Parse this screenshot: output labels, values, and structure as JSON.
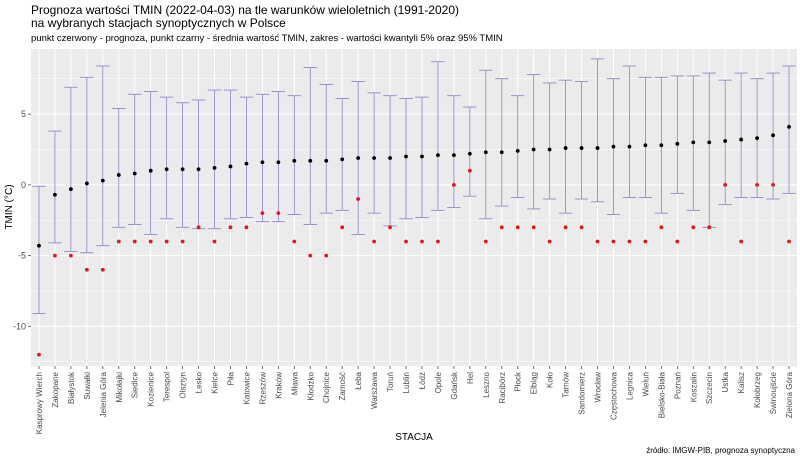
{
  "chart_data": {
    "type": "scatter",
    "title": "Prognoza wartości TMIN (2022-04-03) na tle warunków wieloletnich (1991-2020)",
    "title_line2": "na wybranych stacjach synoptycznych w Polsce",
    "subtitle": "punkt czerwony - prognoza, punkt czarny - średnia wartość TMIN, zakres - wartości kwantyli 5% oraz 95% TMIN",
    "xlabel": "STACJA",
    "ylabel": "TMIN (°C)",
    "caption": "źródło: IMGW-PIB, prognoza synoptyczna",
    "ylim": [
      -12.8,
      9.6
    ],
    "yticks": [
      -10,
      -5,
      0,
      5
    ],
    "grid": true,
    "colors": {
      "mean": "#000000",
      "forecast": "#e8141c",
      "range": "#8080c8",
      "panel": "#ebebeb",
      "grid": "#ffffff"
    },
    "stations": [
      {
        "name": "Kasprowy Wierch",
        "mean": -4.3,
        "forecast": -12.0,
        "q05": -9.1,
        "q95": -0.1
      },
      {
        "name": "Zakopane",
        "mean": -0.7,
        "forecast": -5.0,
        "q05": -4.1,
        "q95": 3.8
      },
      {
        "name": "Białystok",
        "mean": -0.3,
        "forecast": -5.0,
        "q05": -4.7,
        "q95": 6.9
      },
      {
        "name": "Suwałki",
        "mean": 0.1,
        "forecast": -6.0,
        "q05": -4.8,
        "q95": 7.6
      },
      {
        "name": "Jelenia Góra",
        "mean": 0.3,
        "forecast": -6.0,
        "q05": -4.3,
        "q95": 8.4
      },
      {
        "name": "Mikołajki",
        "mean": 0.7,
        "forecast": -4.0,
        "q05": -3.0,
        "q95": 5.4
      },
      {
        "name": "Siedlce",
        "mean": 0.8,
        "forecast": -4.0,
        "q05": -2.8,
        "q95": 6.4
      },
      {
        "name": "Kozienice",
        "mean": 1.0,
        "forecast": -4.0,
        "q05": -3.5,
        "q95": 6.6
      },
      {
        "name": "Terespol",
        "mean": 1.1,
        "forecast": -4.0,
        "q05": -2.4,
        "q95": 6.2
      },
      {
        "name": "Olsztyn",
        "mean": 1.1,
        "forecast": -4.0,
        "q05": -3.0,
        "q95": 5.8
      },
      {
        "name": "Lesko",
        "mean": 1.1,
        "forecast": -3.0,
        "q05": -3.1,
        "q95": 6.0
      },
      {
        "name": "Kielce",
        "mean": 1.2,
        "forecast": -4.0,
        "q05": -3.1,
        "q95": 6.7
      },
      {
        "name": "Piła",
        "mean": 1.3,
        "forecast": -3.0,
        "q05": -2.4,
        "q95": 6.7
      },
      {
        "name": "Katowice",
        "mean": 1.5,
        "forecast": -3.0,
        "q05": -2.3,
        "q95": 6.2
      },
      {
        "name": "Rzeszów",
        "mean": 1.6,
        "forecast": -2.0,
        "q05": -2.6,
        "q95": 6.4
      },
      {
        "name": "Kraków",
        "mean": 1.6,
        "forecast": -2.0,
        "q05": -2.6,
        "q95": 6.6
      },
      {
        "name": "Mława",
        "mean": 1.7,
        "forecast": -4.0,
        "q05": -2.1,
        "q95": 6.3
      },
      {
        "name": "Kłodzko",
        "mean": 1.7,
        "forecast": -5.0,
        "q05": -2.8,
        "q95": 8.3
      },
      {
        "name": "Chojnice",
        "mean": 1.7,
        "forecast": -5.0,
        "q05": -2.0,
        "q95": 7.1
      },
      {
        "name": "Zamość",
        "mean": 1.8,
        "forecast": -3.0,
        "q05": -1.8,
        "q95": 6.1
      },
      {
        "name": "Łeba",
        "mean": 1.9,
        "forecast": -1.0,
        "q05": -3.5,
        "q95": 7.3
      },
      {
        "name": "Warszawa",
        "mean": 1.9,
        "forecast": -4.0,
        "q05": -2.0,
        "q95": 6.5
      },
      {
        "name": "Toruń",
        "mean": 1.9,
        "forecast": -3.0,
        "q05": -2.9,
        "q95": 6.3
      },
      {
        "name": "Lublin",
        "mean": 2.0,
        "forecast": -4.0,
        "q05": -2.4,
        "q95": 6.1
      },
      {
        "name": "Łódź",
        "mean": 2.0,
        "forecast": -4.0,
        "q05": -2.3,
        "q95": 6.2
      },
      {
        "name": "Opole",
        "mean": 2.1,
        "forecast": -4.0,
        "q05": -1.8,
        "q95": 8.7
      },
      {
        "name": "Gdańsk",
        "mean": 2.1,
        "forecast": 0.0,
        "q05": -1.6,
        "q95": 6.3
      },
      {
        "name": "Hel",
        "mean": 2.2,
        "forecast": 1.0,
        "q05": -0.8,
        "q95": 5.5
      },
      {
        "name": "Leszno",
        "mean": 2.3,
        "forecast": -4.0,
        "q05": -2.4,
        "q95": 8.1
      },
      {
        "name": "Racibórz",
        "mean": 2.3,
        "forecast": -3.0,
        "q05": -1.5,
        "q95": 7.5
      },
      {
        "name": "Płock",
        "mean": 2.4,
        "forecast": -3.0,
        "q05": -0.9,
        "q95": 6.3
      },
      {
        "name": "Elbląg",
        "mean": 2.5,
        "forecast": -3.0,
        "q05": -1.7,
        "q95": 7.8
      },
      {
        "name": "Koło",
        "mean": 2.5,
        "forecast": -4.0,
        "q05": -1.0,
        "q95": 7.2
      },
      {
        "name": "Tarnów",
        "mean": 2.6,
        "forecast": -3.0,
        "q05": -2.0,
        "q95": 7.4
      },
      {
        "name": "Sandomierz",
        "mean": 2.6,
        "forecast": -3.0,
        "q05": -1.0,
        "q95": 7.3
      },
      {
        "name": "Wrocław",
        "mean": 2.6,
        "forecast": -4.0,
        "q05": -1.2,
        "q95": 8.9
      },
      {
        "name": "Częstochowa",
        "mean": 2.7,
        "forecast": -4.0,
        "q05": -2.1,
        "q95": 7.5
      },
      {
        "name": "Legnica",
        "mean": 2.7,
        "forecast": -4.0,
        "q05": -0.9,
        "q95": 8.4
      },
      {
        "name": "Wieluń",
        "mean": 2.8,
        "forecast": -4.0,
        "q05": -0.9,
        "q95": 7.6
      },
      {
        "name": "Bielsko-Biała",
        "mean": 2.8,
        "forecast": -3.0,
        "q05": -2.0,
        "q95": 7.6
      },
      {
        "name": "Poznań",
        "mean": 2.9,
        "forecast": -4.0,
        "q05": -0.6,
        "q95": 7.7
      },
      {
        "name": "Koszalin",
        "mean": 3.0,
        "forecast": -3.0,
        "q05": -1.8,
        "q95": 7.7
      },
      {
        "name": "Szczecin",
        "mean": 3.0,
        "forecast": -3.0,
        "q05": -3.0,
        "q95": 7.9
      },
      {
        "name": "Ustka",
        "mean": 3.1,
        "forecast": 0.0,
        "q05": -1.4,
        "q95": 7.4
      },
      {
        "name": "Kalisz",
        "mean": 3.2,
        "forecast": -4.0,
        "q05": -0.9,
        "q95": 7.9
      },
      {
        "name": "Kołobrzeg",
        "mean": 3.3,
        "forecast": 0.0,
        "q05": -0.9,
        "q95": 7.5
      },
      {
        "name": "Świnoujście",
        "mean": 3.5,
        "forecast": 0.0,
        "q05": -1.0,
        "q95": 7.9
      },
      {
        "name": "Zielona Góra",
        "mean": 4.1,
        "forecast": -4.0,
        "q05": -0.6,
        "q95": 8.4
      }
    ]
  }
}
